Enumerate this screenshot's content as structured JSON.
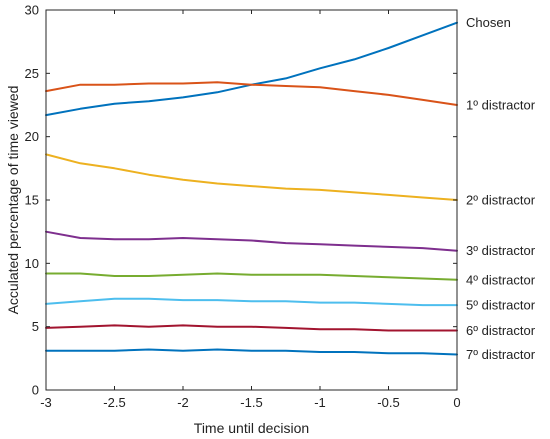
{
  "chart_data": {
    "type": "line",
    "title": "",
    "xlabel": "Time until decision",
    "ylabel": "Acculated percentage of time viewed",
    "xlim": [
      -3,
      0
    ],
    "ylim": [
      0,
      30
    ],
    "xticks": [
      -3,
      -2.5,
      -2,
      -1.5,
      -1,
      -0.5,
      0
    ],
    "xtick_labels": [
      "-3",
      "-2.5",
      "-2",
      "-1.5",
      "-1",
      "-0.5",
      "0"
    ],
    "yticks": [
      0,
      5,
      10,
      15,
      20,
      25,
      30
    ],
    "ytick_labels": [
      "0",
      "5",
      "10",
      "15",
      "20",
      "25",
      "30"
    ],
    "grid": false,
    "legend": "labels at right end of each line",
    "x": [
      -3,
      -2.75,
      -2.5,
      -2.25,
      -2,
      -1.75,
      -1.5,
      -1.25,
      -1,
      -0.75,
      -0.5,
      -0.25,
      0
    ],
    "series": [
      {
        "name": "Chosen",
        "color": "#0072BD",
        "values": [
          21.7,
          22.2,
          22.6,
          22.8,
          23.1,
          23.5,
          24.1,
          24.6,
          25.4,
          26.1,
          27.0,
          28.0,
          29.0
        ]
      },
      {
        "name": "1º distractor",
        "color": "#D95319",
        "values": [
          23.6,
          24.1,
          24.1,
          24.2,
          24.2,
          24.3,
          24.1,
          24.0,
          23.9,
          23.6,
          23.3,
          22.9,
          22.5
        ]
      },
      {
        "name": "2º distractor",
        "color": "#EDB120",
        "values": [
          18.6,
          17.9,
          17.5,
          17.0,
          16.6,
          16.3,
          16.1,
          15.9,
          15.8,
          15.6,
          15.4,
          15.2,
          15.0
        ]
      },
      {
        "name": "3º distractor",
        "color": "#7E2F8E",
        "values": [
          12.5,
          12.0,
          11.9,
          11.9,
          12.0,
          11.9,
          11.8,
          11.6,
          11.5,
          11.4,
          11.3,
          11.2,
          11.0
        ]
      },
      {
        "name": "4º distractor",
        "color": "#77AC30",
        "values": [
          9.2,
          9.2,
          9.0,
          9.0,
          9.1,
          9.2,
          9.1,
          9.1,
          9.1,
          9.0,
          8.9,
          8.8,
          8.7
        ]
      },
      {
        "name": "5º distractor",
        "color": "#4DBEEE",
        "values": [
          6.8,
          7.0,
          7.2,
          7.2,
          7.1,
          7.1,
          7.0,
          7.0,
          6.9,
          6.9,
          6.8,
          6.7,
          6.7
        ]
      },
      {
        "name": "6º distractor",
        "color": "#A2142F",
        "values": [
          4.9,
          5.0,
          5.1,
          5.0,
          5.1,
          5.0,
          5.0,
          4.9,
          4.8,
          4.8,
          4.7,
          4.7,
          4.7
        ]
      },
      {
        "name": "7º distractor",
        "color": "#0072BD",
        "values": [
          3.1,
          3.1,
          3.1,
          3.2,
          3.1,
          3.2,
          3.1,
          3.1,
          3.0,
          3.0,
          2.9,
          2.9,
          2.8
        ]
      }
    ]
  }
}
